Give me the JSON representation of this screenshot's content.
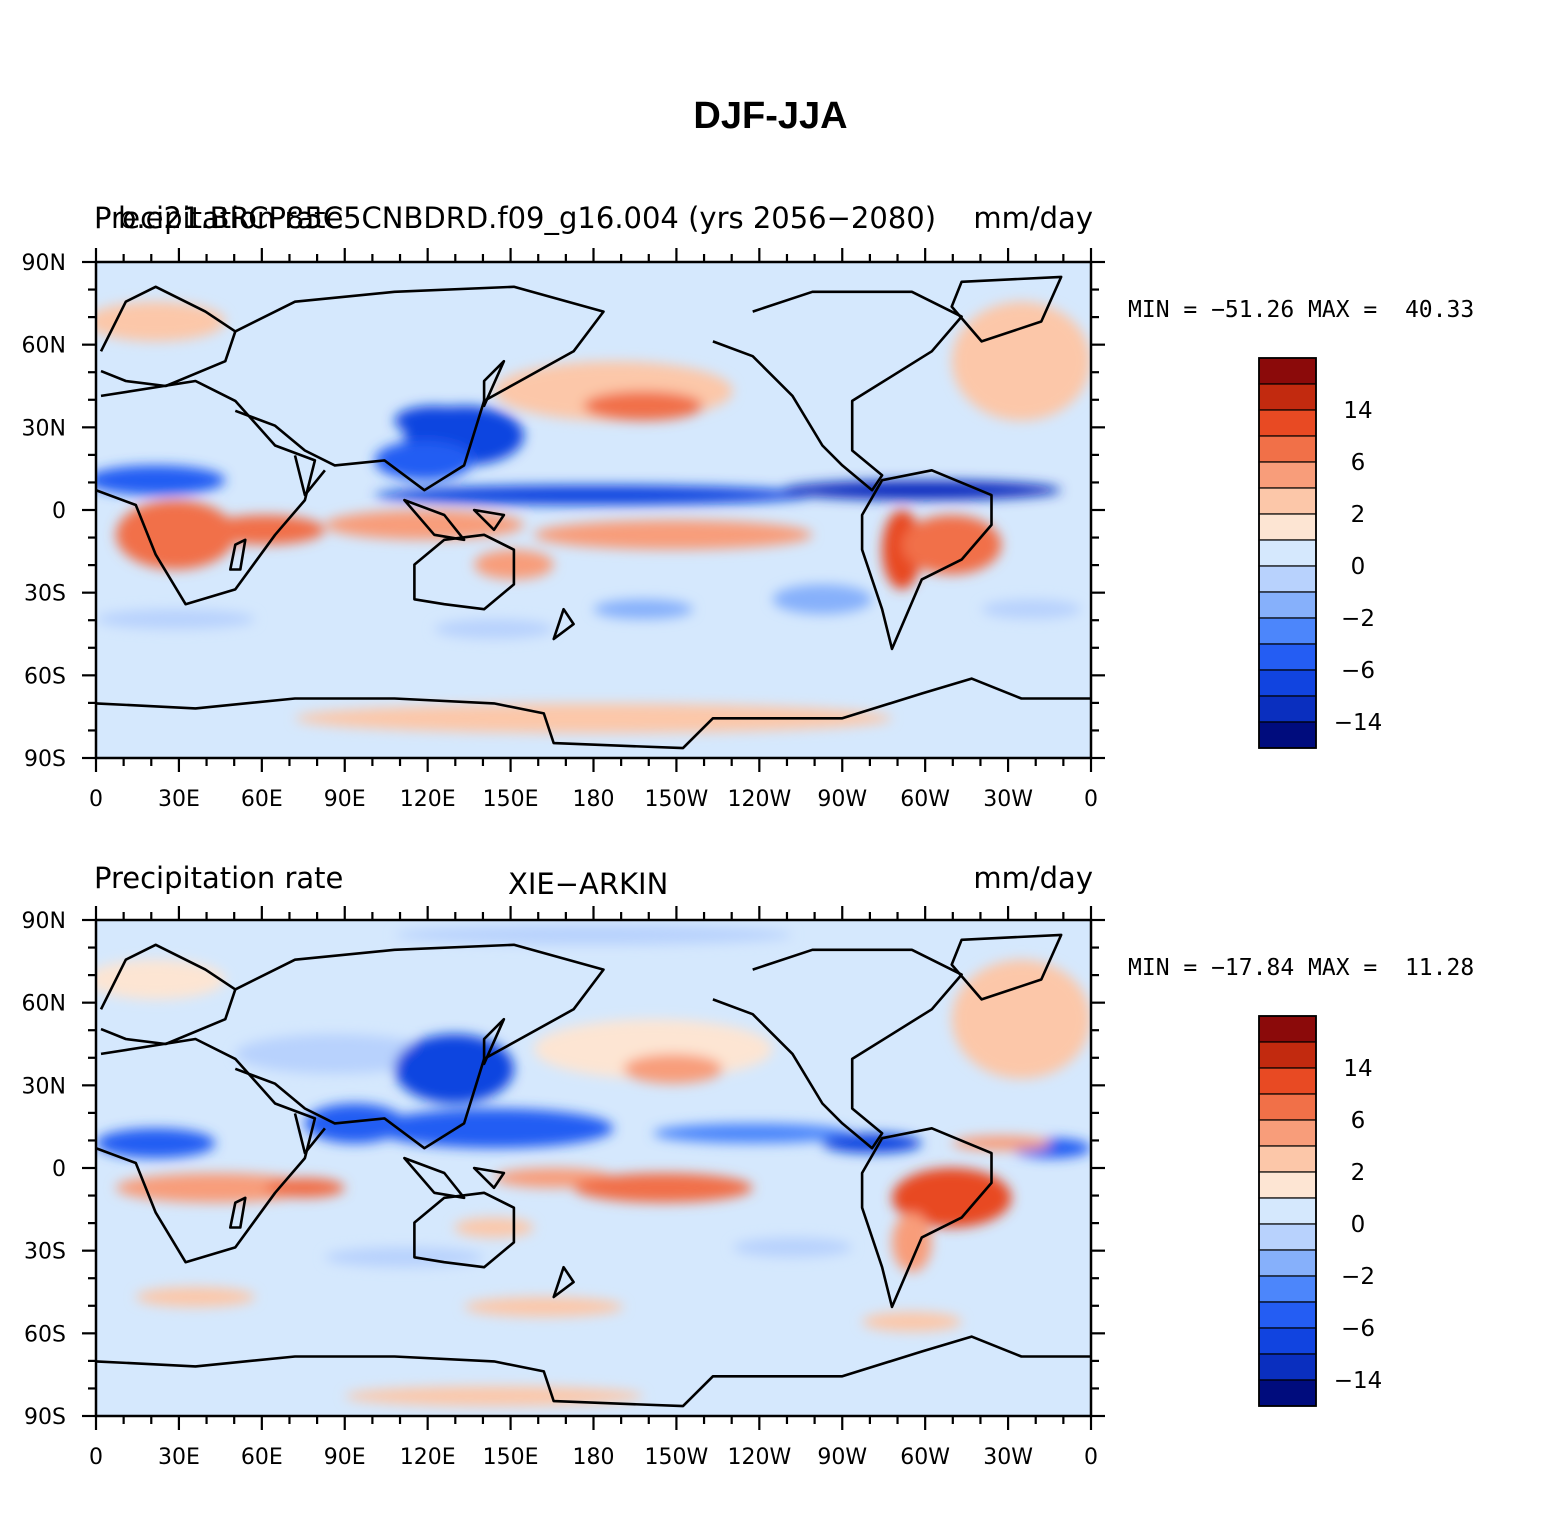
{
  "page_title": "DJF-JJA",
  "palette": [
    "#000c7d",
    "#0a2fbf",
    "#1144e0",
    "#245df3",
    "#4c86fb",
    "#86b0fb",
    "#b8d2fd",
    "#d5e8fd",
    "#fde5d3",
    "#fcc7a9",
    "#f89d7a",
    "#f17048",
    "#e84a23",
    "#c22a0f",
    "#8b0a0a"
  ],
  "colorbar_labels": [
    "14",
    "6",
    "2",
    "0",
    "−2",
    "−6",
    "−14"
  ],
  "axes": {
    "lon_ticks": [
      "0",
      "30E",
      "60E",
      "90E",
      "120E",
      "150E",
      "180",
      "150W",
      "120W",
      "90W",
      "60W",
      "30W",
      "0"
    ],
    "lat_ticks": [
      "90N",
      "60N",
      "30N",
      "0",
      "30S",
      "60S",
      "90S"
    ]
  },
  "panels": [
    {
      "left_label": "Precipitation rate",
      "center_label": "b.e21.BRCP85C5CNBDRD.f09_g16.004 (yrs 2056−2080)",
      "right_label": "mm/day",
      "min_max": "MIN = −51.26 MAX =  40.33"
    },
    {
      "left_label": "Precipitation rate",
      "center_label": "XIE−ARKIN",
      "right_label": "mm/day",
      "min_max": "MIN = −17.84 MAX =  11.28"
    }
  ]
}
